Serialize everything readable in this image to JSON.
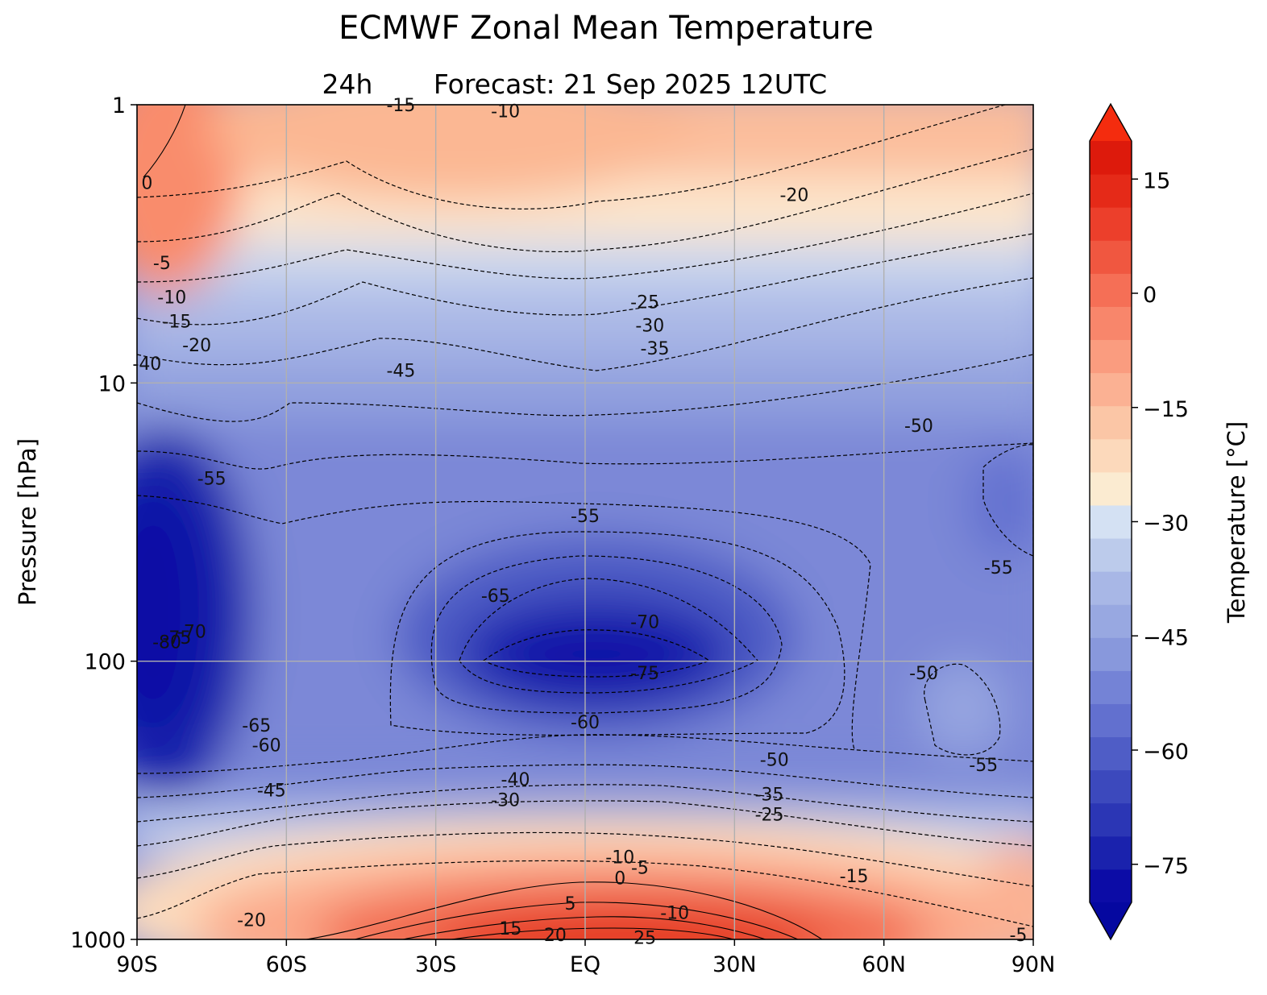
{
  "chart_data": {
    "type": "contour",
    "title": "ECMWF Zonal Mean Temperature",
    "subtitle_left": "24h",
    "subtitle_right": "Forecast:  21 Sep 2025  12UTC",
    "xlabel": "",
    "ylabel": "Pressure [hPa]",
    "x_ticks": [
      "90S",
      "60S",
      "30S",
      "EQ",
      "30N",
      "60N",
      "90N"
    ],
    "x_tick_values": [
      -90,
      -60,
      -30,
      0,
      30,
      60,
      90
    ],
    "xlim": [
      -90,
      90
    ],
    "y_scale": "log",
    "y_ticks": [
      "1",
      "10",
      "100",
      "1000"
    ],
    "y_tick_values": [
      1,
      10,
      100,
      1000
    ],
    "ylim": [
      1000,
      1
    ],
    "grid": true,
    "colorbar": {
      "label": "Temperature [°C]",
      "ticks": [
        "15",
        "0",
        "−15",
        "−30",
        "−45",
        "−60",
        "−75"
      ],
      "tick_values": [
        15,
        0,
        -15,
        -30,
        -45,
        -60,
        -75
      ],
      "range": [
        -80,
        20
      ],
      "step": 5,
      "extend": "both",
      "colors": [
        "#0c0ca6",
        "#1a22ad",
        "#2b36b5",
        "#3c49bd",
        "#4f5dc6",
        "#6270cf",
        "#7483d6",
        "#8898dc",
        "#98a8e1",
        "#a8b7e6",
        "#bccbeb",
        "#d4e1f3",
        "#fbebd1",
        "#fcd9bb",
        "#fbc6a6",
        "#fbb193",
        "#fa9c7f",
        "#f8866b",
        "#f56f56",
        "#f05740",
        "#ec3f2b",
        "#e52a18",
        "#dd1a0c"
      ]
    },
    "contour_labels": [
      {
        "text": "0",
        "lat": -88,
        "p": 1.9
      },
      {
        "text": "-5",
        "lat": -85,
        "p": 3.7
      },
      {
        "text": "-10",
        "lat": -83,
        "p": 4.9
      },
      {
        "text": "-15",
        "lat": -82,
        "p": 6.0
      },
      {
        "text": "-20",
        "lat": -78,
        "p": 7.3
      },
      {
        "text": "-40",
        "lat": -88,
        "p": 8.5
      },
      {
        "text": "-55",
        "lat": -75,
        "p": 22
      },
      {
        "text": "-80",
        "lat": -84,
        "p": 85
      },
      {
        "text": "-75",
        "lat": -82,
        "p": 82
      },
      {
        "text": "-70",
        "lat": -79,
        "p": 78
      },
      {
        "text": "-65",
        "lat": -66,
        "p": 170
      },
      {
        "text": "-60",
        "lat": -64,
        "p": 200
      },
      {
        "text": "-45",
        "lat": -63,
        "p": 290
      },
      {
        "text": "-20",
        "lat": -67,
        "p": 850
      },
      {
        "text": "-10",
        "lat": -16,
        "p": 1.05
      },
      {
        "text": "-20",
        "lat": 42,
        "p": 2.1
      },
      {
        "text": "-25",
        "lat": 12,
        "p": 5.1
      },
      {
        "text": "-30",
        "lat": 13,
        "p": 6.2
      },
      {
        "text": "-35",
        "lat": 14,
        "p": 7.5
      },
      {
        "text": "-45",
        "lat": -37,
        "p": 9.0
      },
      {
        "text": "-50",
        "lat": 67,
        "p": 14.2
      },
      {
        "text": "-55",
        "lat": 0,
        "p": 30
      },
      {
        "text": "-55",
        "lat": 83,
        "p": 46
      },
      {
        "text": "-65",
        "lat": -18,
        "p": 58
      },
      {
        "text": "-70",
        "lat": 12,
        "p": 72
      },
      {
        "text": "-75",
        "lat": 12,
        "p": 110
      },
      {
        "text": "-60",
        "lat": 0,
        "p": 165
      },
      {
        "text": "-50",
        "lat": 68,
        "p": 110
      },
      {
        "text": "-50",
        "lat": 38,
        "p": 225
      },
      {
        "text": "-55",
        "lat": 80,
        "p": 235
      },
      {
        "text": "-40",
        "lat": -14,
        "p": 265
      },
      {
        "text": "-30",
        "lat": -16,
        "p": 315
      },
      {
        "text": "-35",
        "lat": 37,
        "p": 300
      },
      {
        "text": "-25",
        "lat": 37,
        "p": 355
      },
      {
        "text": "-10",
        "lat": 7,
        "p": 505
      },
      {
        "text": "-5",
        "lat": 11,
        "p": 550
      },
      {
        "text": "0",
        "lat": 7,
        "p": 600
      },
      {
        "text": "-15",
        "lat": 54,
        "p": 590
      },
      {
        "text": "5",
        "lat": -3,
        "p": 740
      },
      {
        "text": "-10",
        "lat": 18,
        "p": 800
      },
      {
        "text": "15",
        "lat": -15,
        "p": 910
      },
      {
        "text": "20",
        "lat": -6,
        "p": 960
      },
      {
        "text": "25",
        "lat": 12,
        "p": 985
      },
      {
        "text": "-5",
        "lat": 87,
        "p": 960
      },
      {
        "text": "-15",
        "lat": -37,
        "p": 1.0
      }
    ]
  }
}
